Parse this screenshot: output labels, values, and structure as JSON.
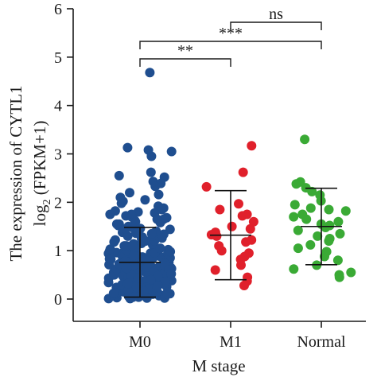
{
  "chart_data": {
    "type": "scatter",
    "xlabel": "M stage",
    "ylabel_line1": "The expression of CYTL1",
    "ylabel_line2_main": "log",
    "ylabel_line2_sub": "2",
    "ylabel_line2_rest": " (FPKM+1)",
    "ylim": [
      0,
      6
    ],
    "yticks": [
      "0",
      "1",
      "2",
      "3",
      "4",
      "5",
      "6"
    ],
    "categories": [
      "M0",
      "M1",
      "Normal"
    ],
    "grid": false,
    "legend": "none",
    "series": [
      {
        "category": "M0",
        "color": "#1f4e8f",
        "mean": 0.76,
        "sd": 0.72,
        "points": [
          4.68,
          3.13,
          3.08,
          3.05,
          2.95,
          2.62,
          2.55,
          2.52,
          2.43,
          2.39,
          2.33,
          2.2,
          2.16,
          2.1,
          2.05,
          2.02,
          1.98,
          1.92,
          1.88,
          1.85,
          1.82,
          1.8,
          1.78,
          1.75,
          1.72,
          1.7,
          1.68,
          1.65,
          1.62,
          1.6,
          1.58,
          1.55,
          1.52,
          1.5,
          1.48,
          1.46,
          1.44,
          1.42,
          1.4,
          1.38,
          1.36,
          1.34,
          1.32,
          1.3,
          1.28,
          1.26,
          1.24,
          1.22,
          1.2,
          1.18,
          1.16,
          1.14,
          1.12,
          1.1,
          1.08,
          1.06,
          1.04,
          1.02,
          1.0,
          0.99,
          0.98,
          0.96,
          0.95,
          0.94,
          0.93,
          0.92,
          0.91,
          0.9,
          0.89,
          0.88,
          0.87,
          0.86,
          0.85,
          0.84,
          0.83,
          0.82,
          0.81,
          0.8,
          0.79,
          0.78,
          0.77,
          0.76,
          0.75,
          0.74,
          0.73,
          0.72,
          0.71,
          0.7,
          0.69,
          0.68,
          0.67,
          0.66,
          0.65,
          0.64,
          0.63,
          0.62,
          0.61,
          0.6,
          0.59,
          0.58,
          0.57,
          0.56,
          0.55,
          0.54,
          0.53,
          0.52,
          0.51,
          0.5,
          0.49,
          0.48,
          0.47,
          0.46,
          0.45,
          0.44,
          0.43,
          0.42,
          0.41,
          0.4,
          0.39,
          0.38,
          0.37,
          0.36,
          0.35,
          0.34,
          0.33,
          0.32,
          0.31,
          0.3,
          0.29,
          0.28,
          0.27,
          0.26,
          0.25,
          0.24,
          0.23,
          0.22,
          0.21,
          0.2,
          0.19,
          0.18,
          0.17,
          0.16,
          0.15,
          0.14,
          0.13,
          0.12,
          0.11,
          0.1,
          0.09,
          0.08,
          0.07,
          0.06,
          0.05,
          0.04,
          0.03,
          0.02,
          0.01,
          0.01,
          0.02,
          0.04,
          0.06,
          0.08,
          0.1,
          0.12,
          0.15,
          0.18,
          0.22,
          0.26,
          0.3,
          0.35,
          0.4,
          0.45,
          0.5,
          0.55,
          0.6,
          0.65,
          0.7,
          0.75,
          0.8,
          0.85,
          0.9,
          0.95,
          1.0,
          1.05,
          1.1,
          1.15,
          1.2,
          1.25,
          1.3,
          1.35,
          1.45,
          1.55,
          1.65,
          1.75,
          0.62,
          0.58,
          0.54,
          0.5,
          0.46,
          0.42,
          0.38,
          0.34,
          0.3,
          0.26,
          0.22,
          0.18,
          0.14,
          0.1,
          0.66,
          0.7,
          0.74,
          0.78,
          0.82,
          0.86,
          0.9,
          0.94,
          0.98,
          1.03,
          1.07,
          1.11,
          0.72,
          0.68,
          0.64,
          0.6,
          0.56,
          0.52,
          0.48,
          0.44,
          0.4,
          0.36,
          0.32,
          0.28,
          0.24,
          0.2,
          0.16,
          0.12
        ]
      },
      {
        "category": "M1",
        "color": "#e0202b",
        "mean": 1.32,
        "sd": 0.92,
        "points": [
          3.17,
          2.62,
          2.32,
          1.97,
          1.85,
          1.75,
          1.72,
          1.6,
          1.5,
          1.45,
          1.38,
          1.33,
          1.3,
          1.22,
          1.18,
          1.1,
          1.0,
          0.95,
          0.88,
          0.82,
          0.7,
          0.6,
          0.45,
          0.37,
          0.28
        ]
      },
      {
        "category": "Normal",
        "color": "#3aaa35",
        "mean": 1.5,
        "sd": 0.79,
        "points": [
          3.3,
          2.42,
          2.38,
          2.3,
          2.22,
          2.15,
          2.03,
          1.95,
          1.88,
          1.85,
          1.82,
          1.75,
          1.7,
          1.65,
          1.6,
          1.55,
          1.52,
          1.48,
          1.42,
          1.35,
          1.3,
          1.25,
          1.2,
          1.12,
          1.05,
          0.98,
          0.88,
          0.8,
          0.7,
          0.62,
          0.55,
          0.5,
          0.45
        ]
      }
    ],
    "comparisons": [
      {
        "from": "M0",
        "to": "M1",
        "label": "**"
      },
      {
        "from": "M0",
        "to": "Normal",
        "label": "***"
      },
      {
        "from": "M1",
        "to": "Normal",
        "label": "ns"
      }
    ]
  }
}
